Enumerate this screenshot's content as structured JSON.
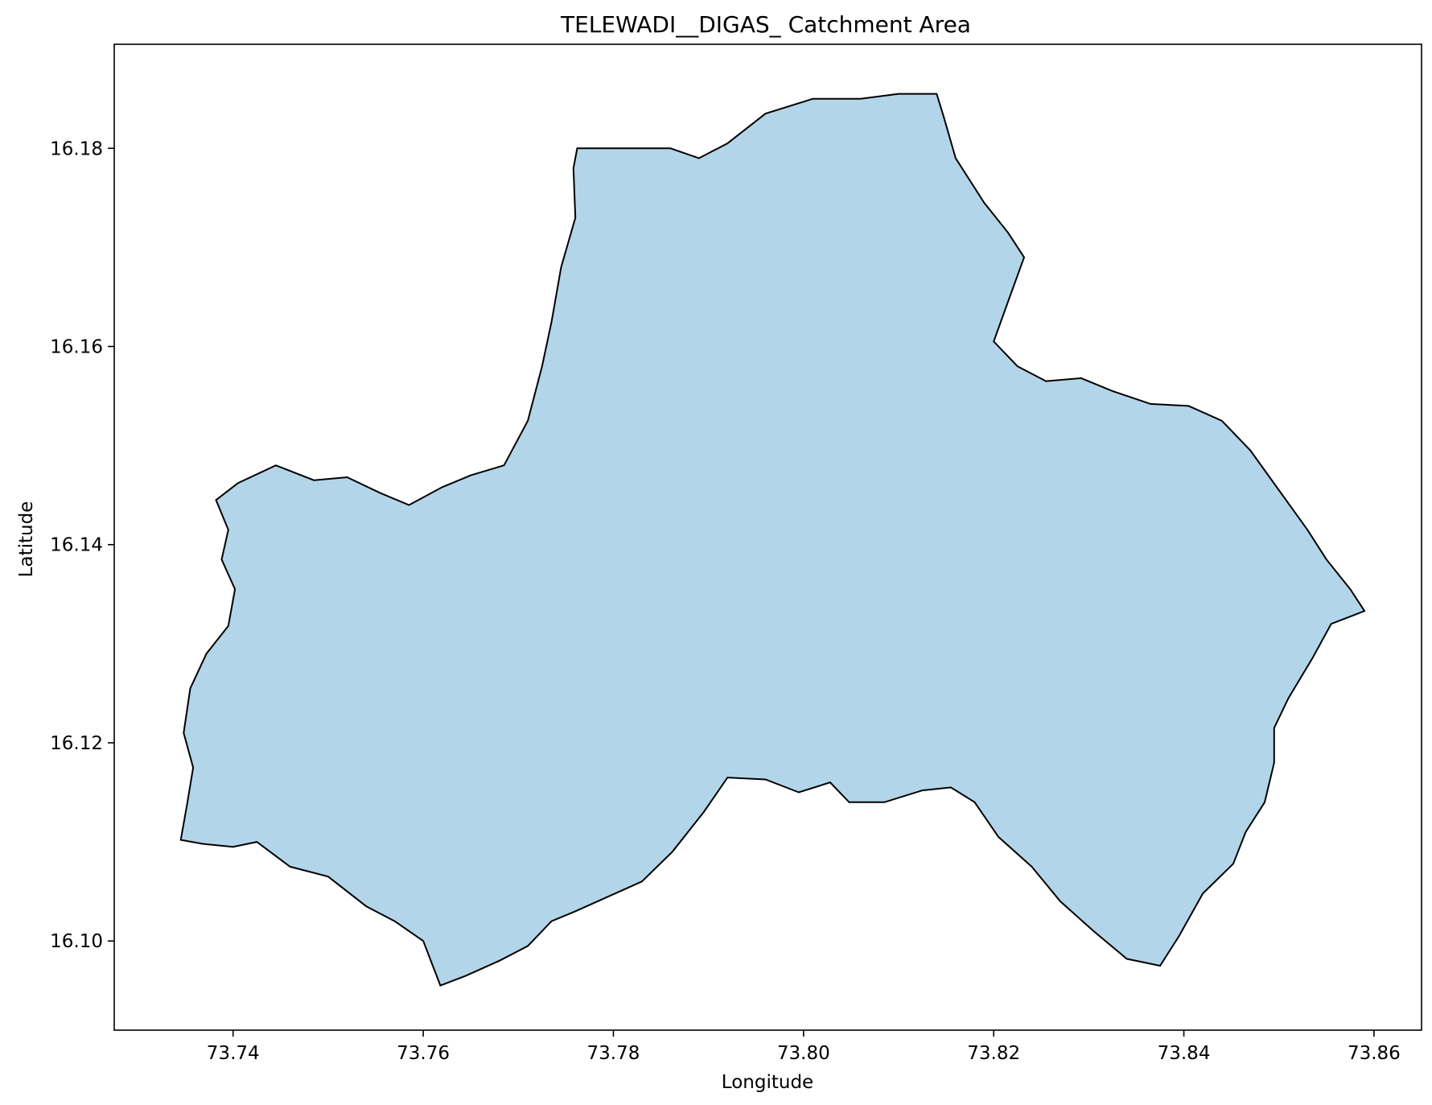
{
  "chart_data": {
    "type": "area",
    "title": "TELEWADI__DIGAS_ Catchment Area",
    "xlabel": "Longitude",
    "ylabel": "Latitude",
    "xlim": [
      73.7275,
      73.865
    ],
    "ylim": [
      16.091,
      16.1905
    ],
    "xticks": [
      73.74,
      73.76,
      73.78,
      73.8,
      73.82,
      73.84,
      73.86
    ],
    "xtick_labels": [
      "73.74",
      "73.76",
      "73.78",
      "73.80",
      "73.82",
      "73.84",
      "73.86"
    ],
    "yticks": [
      16.1,
      16.12,
      16.14,
      16.16,
      16.18
    ],
    "ytick_labels": [
      "16.10",
      "16.12",
      "16.14",
      "16.16",
      "16.18"
    ],
    "grid": false,
    "legend": "none",
    "fill_color": "#b3d5e9",
    "edge_color": "#000000",
    "polygon": [
      [
        73.7762,
        16.18
      ],
      [
        73.782,
        16.18
      ],
      [
        73.786,
        16.18
      ],
      [
        73.789,
        16.179
      ],
      [
        73.792,
        16.1805
      ],
      [
        73.796,
        16.1835
      ],
      [
        73.801,
        16.185
      ],
      [
        73.806,
        16.185
      ],
      [
        73.81,
        16.1855
      ],
      [
        73.814,
        16.1855
      ],
      [
        73.8148,
        16.183
      ],
      [
        73.816,
        16.179
      ],
      [
        73.819,
        16.1745
      ],
      [
        73.8215,
        16.1715
      ],
      [
        73.8232,
        16.169
      ],
      [
        73.8215,
        16.1645
      ],
      [
        73.82,
        16.1605
      ],
      [
        73.8225,
        16.158
      ],
      [
        73.8255,
        16.1565
      ],
      [
        73.8292,
        16.1568
      ],
      [
        73.8325,
        16.1555
      ],
      [
        73.8365,
        16.1542
      ],
      [
        73.8405,
        16.154
      ],
      [
        73.844,
        16.1525
      ],
      [
        73.847,
        16.1495
      ],
      [
        73.85,
        16.1455
      ],
      [
        73.853,
        16.1415
      ],
      [
        73.855,
        16.1385
      ],
      [
        73.8575,
        16.1355
      ],
      [
        73.859,
        16.1333
      ],
      [
        73.8555,
        16.132
      ],
      [
        73.8535,
        16.1285
      ],
      [
        73.851,
        16.1245
      ],
      [
        73.8495,
        16.1215
      ],
      [
        73.8495,
        16.118
      ],
      [
        73.8485,
        16.114
      ],
      [
        73.8465,
        16.111
      ],
      [
        73.8452,
        16.1078
      ],
      [
        73.842,
        16.1048
      ],
      [
        73.8395,
        16.1005
      ],
      [
        73.8375,
        16.0975
      ],
      [
        73.834,
        16.0982
      ],
      [
        73.8305,
        16.101
      ],
      [
        73.827,
        16.104
      ],
      [
        73.824,
        16.1075
      ],
      [
        73.8205,
        16.1105
      ],
      [
        73.818,
        16.114
      ],
      [
        73.8155,
        16.1155
      ],
      [
        73.8125,
        16.1152
      ],
      [
        73.8085,
        16.114
      ],
      [
        73.8048,
        16.114
      ],
      [
        73.8028,
        16.116
      ],
      [
        73.7995,
        16.115
      ],
      [
        73.796,
        16.1163
      ],
      [
        73.792,
        16.1165
      ],
      [
        73.7895,
        16.113
      ],
      [
        73.7862,
        16.109
      ],
      [
        73.783,
        16.106
      ],
      [
        73.7795,
        16.1045
      ],
      [
        73.776,
        16.103
      ],
      [
        73.7735,
        16.102
      ],
      [
        73.771,
        16.0995
      ],
      [
        73.768,
        16.098
      ],
      [
        73.7645,
        16.0965
      ],
      [
        73.7618,
        16.0955
      ],
      [
        73.76,
        16.1
      ],
      [
        73.757,
        16.102
      ],
      [
        73.754,
        16.1035
      ],
      [
        73.75,
        16.1065
      ],
      [
        73.746,
        16.1075
      ],
      [
        73.7425,
        16.11
      ],
      [
        73.74,
        16.1095
      ],
      [
        73.7368,
        16.1098
      ],
      [
        73.7345,
        16.1102
      ],
      [
        73.7352,
        16.114
      ],
      [
        73.7358,
        16.1175
      ],
      [
        73.7348,
        16.121
      ],
      [
        73.7355,
        16.1255
      ],
      [
        73.7372,
        16.129
      ],
      [
        73.7395,
        16.1318
      ],
      [
        73.7402,
        16.1355
      ],
      [
        73.7388,
        16.1385
      ],
      [
        73.7395,
        16.1415
      ],
      [
        73.7382,
        16.1445
      ],
      [
        73.7405,
        16.1462
      ],
      [
        73.7445,
        16.148
      ],
      [
        73.7485,
        16.1465
      ],
      [
        73.752,
        16.1468
      ],
      [
        73.7555,
        16.1452
      ],
      [
        73.7585,
        16.144
      ],
      [
        73.762,
        16.1458
      ],
      [
        73.765,
        16.147
      ],
      [
        73.7685,
        16.148
      ],
      [
        73.771,
        16.1525
      ],
      [
        73.7725,
        16.158
      ],
      [
        73.7735,
        16.1625
      ],
      [
        73.7745,
        16.168
      ],
      [
        73.776,
        16.173
      ],
      [
        73.7758,
        16.178
      ]
    ]
  }
}
